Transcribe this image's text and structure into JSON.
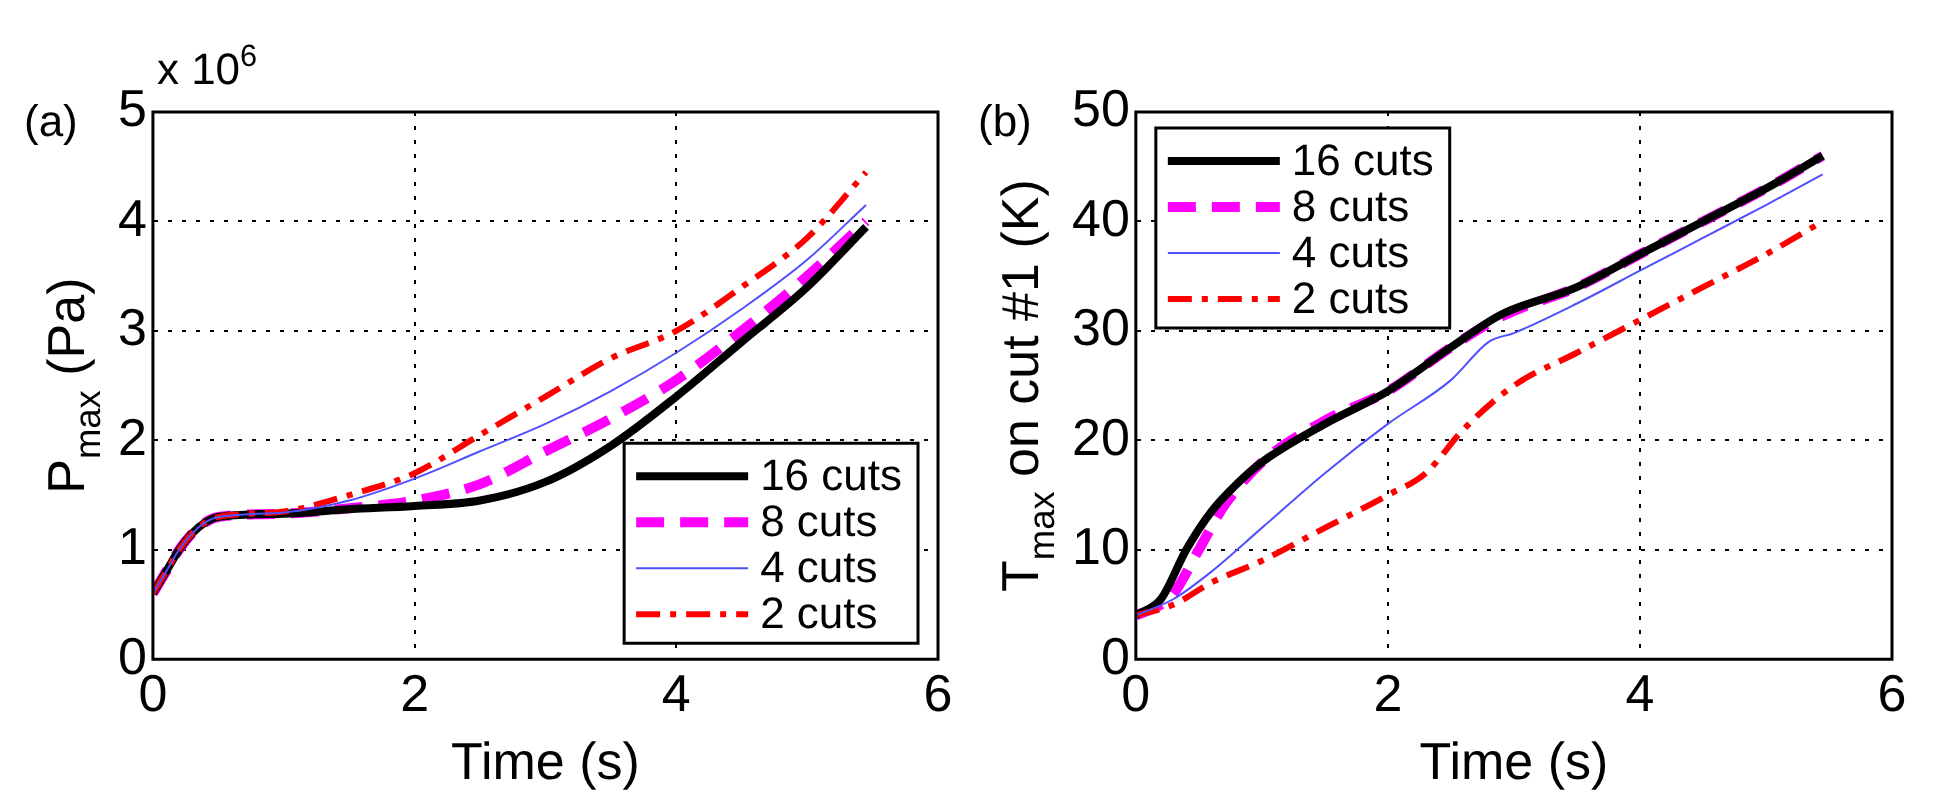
{
  "chart_data": [
    {
      "type": "line",
      "title": "(a)",
      "xlabel": "Time (s)",
      "ylabel": "P$_{max}$ (Pa)",
      "annotations": [
        "x 10$^{6}$"
      ],
      "xlim": [
        0,
        6
      ],
      "xticks": [
        0,
        2,
        4,
        6
      ],
      "ylim": [
        0,
        5
      ],
      "yticks": [
        0,
        1,
        2,
        3,
        4,
        5
      ],
      "grid": true,
      "legend": "bottom right",
      "marker": "none",
      "series": [
        {
          "name": "16 cuts",
          "color": "#000000",
          "line_style": "solid",
          "x": [
            0,
            0.1,
            0.2,
            0.3,
            0.4,
            0.5,
            1,
            1.5,
            2,
            2.5,
            3,
            3.5,
            4,
            4.5,
            5,
            5.45
          ],
          "values": [
            0.6,
            0.8,
            1.0,
            1.15,
            1.25,
            1.3,
            1.33,
            1.37,
            1.4,
            1.45,
            1.62,
            1.95,
            2.4,
            2.9,
            3.4,
            3.95
          ]
        },
        {
          "name": "8 cuts",
          "color": "#ff00ff",
          "line_style": "dashed",
          "x": [
            0,
            0.1,
            0.2,
            0.3,
            0.4,
            0.5,
            1,
            1.5,
            2,
            2.5,
            3,
            3.5,
            4,
            4.5,
            5,
            5.45
          ],
          "values": [
            0.6,
            0.8,
            1.0,
            1.15,
            1.25,
            1.3,
            1.33,
            1.38,
            1.45,
            1.6,
            1.9,
            2.2,
            2.55,
            3.0,
            3.5,
            4.0
          ]
        },
        {
          "name": "4 cuts",
          "color": "#5050ff",
          "line_style": "solid",
          "x": [
            0,
            0.1,
            0.2,
            0.3,
            0.4,
            0.5,
            1,
            1.5,
            2,
            2.5,
            3,
            3.5,
            4,
            4.5,
            5,
            5.45
          ],
          "values": [
            0.6,
            0.8,
            1.0,
            1.15,
            1.25,
            1.3,
            1.34,
            1.45,
            1.65,
            1.9,
            2.15,
            2.45,
            2.8,
            3.2,
            3.65,
            4.15
          ]
        },
        {
          "name": "2 cuts",
          "color": "#ff0000",
          "line_style": "dashdot",
          "x": [
            0,
            0.1,
            0.2,
            0.3,
            0.4,
            0.5,
            1,
            1.5,
            2,
            2.5,
            3,
            3.5,
            4,
            4.5,
            5,
            5.45
          ],
          "values": [
            0.6,
            0.8,
            1.0,
            1.15,
            1.25,
            1.3,
            1.35,
            1.5,
            1.7,
            2.05,
            2.4,
            2.75,
            3.0,
            3.4,
            3.85,
            4.45
          ]
        }
      ]
    },
    {
      "type": "line",
      "title": "(b)",
      "xlabel": "Time (s)",
      "ylabel": "T$_{max}$ on cut #1 (K)",
      "xlim": [
        0,
        6
      ],
      "xticks": [
        0,
        2,
        4,
        6
      ],
      "ylim": [
        0,
        50
      ],
      "yticks": [
        0,
        10,
        20,
        30,
        40,
        50
      ],
      "grid": true,
      "legend": "top left",
      "marker": "none",
      "series": [
        {
          "name": "16 cuts",
          "color": "#000000",
          "line_style": "solid",
          "x": [
            0,
            0.2,
            0.4,
            0.6,
            0.8,
            1,
            1.5,
            2,
            2.5,
            2.9,
            3.5,
            4,
            4.5,
            5,
            5.45
          ],
          "values": [
            4,
            5.5,
            10,
            13.5,
            16,
            18,
            21.5,
            24.5,
            28.5,
            31.5,
            34,
            37,
            40,
            43,
            46
          ]
        },
        {
          "name": "8 cuts",
          "color": "#ff00ff",
          "line_style": "dashed",
          "x": [
            0,
            0.2,
            0.3,
            0.5,
            0.7,
            1,
            1.5,
            2,
            2.5,
            2.9,
            3.5,
            4,
            4.5,
            5,
            5.45
          ],
          "values": [
            4,
            5,
            6,
            10,
            14,
            18,
            21.8,
            24.5,
            28.5,
            31.3,
            34,
            37,
            40,
            43,
            46
          ]
        },
        {
          "name": "4 cuts",
          "color": "#5050ff",
          "line_style": "solid",
          "x": [
            0,
            0.3,
            0.6,
            1,
            1.5,
            2,
            2.5,
            2.8,
            3,
            3.5,
            4,
            4.5,
            5,
            5.45
          ],
          "values": [
            4,
            5.5,
            8,
            12,
            17,
            21.5,
            25.5,
            29,
            29.8,
            32.5,
            35.5,
            38.5,
            41.5,
            44.3
          ]
        },
        {
          "name": "2 cuts",
          "color": "#ff0000",
          "line_style": "dashdot",
          "x": [
            0,
            0.3,
            0.6,
            1,
            1.5,
            2,
            2.3,
            2.6,
            3,
            3.5,
            4,
            4.5,
            5,
            5.45
          ],
          "values": [
            4,
            5,
            7,
            9,
            12,
            15,
            17,
            21,
            25,
            28,
            31,
            34,
            37,
            40
          ]
        }
      ]
    }
  ]
}
